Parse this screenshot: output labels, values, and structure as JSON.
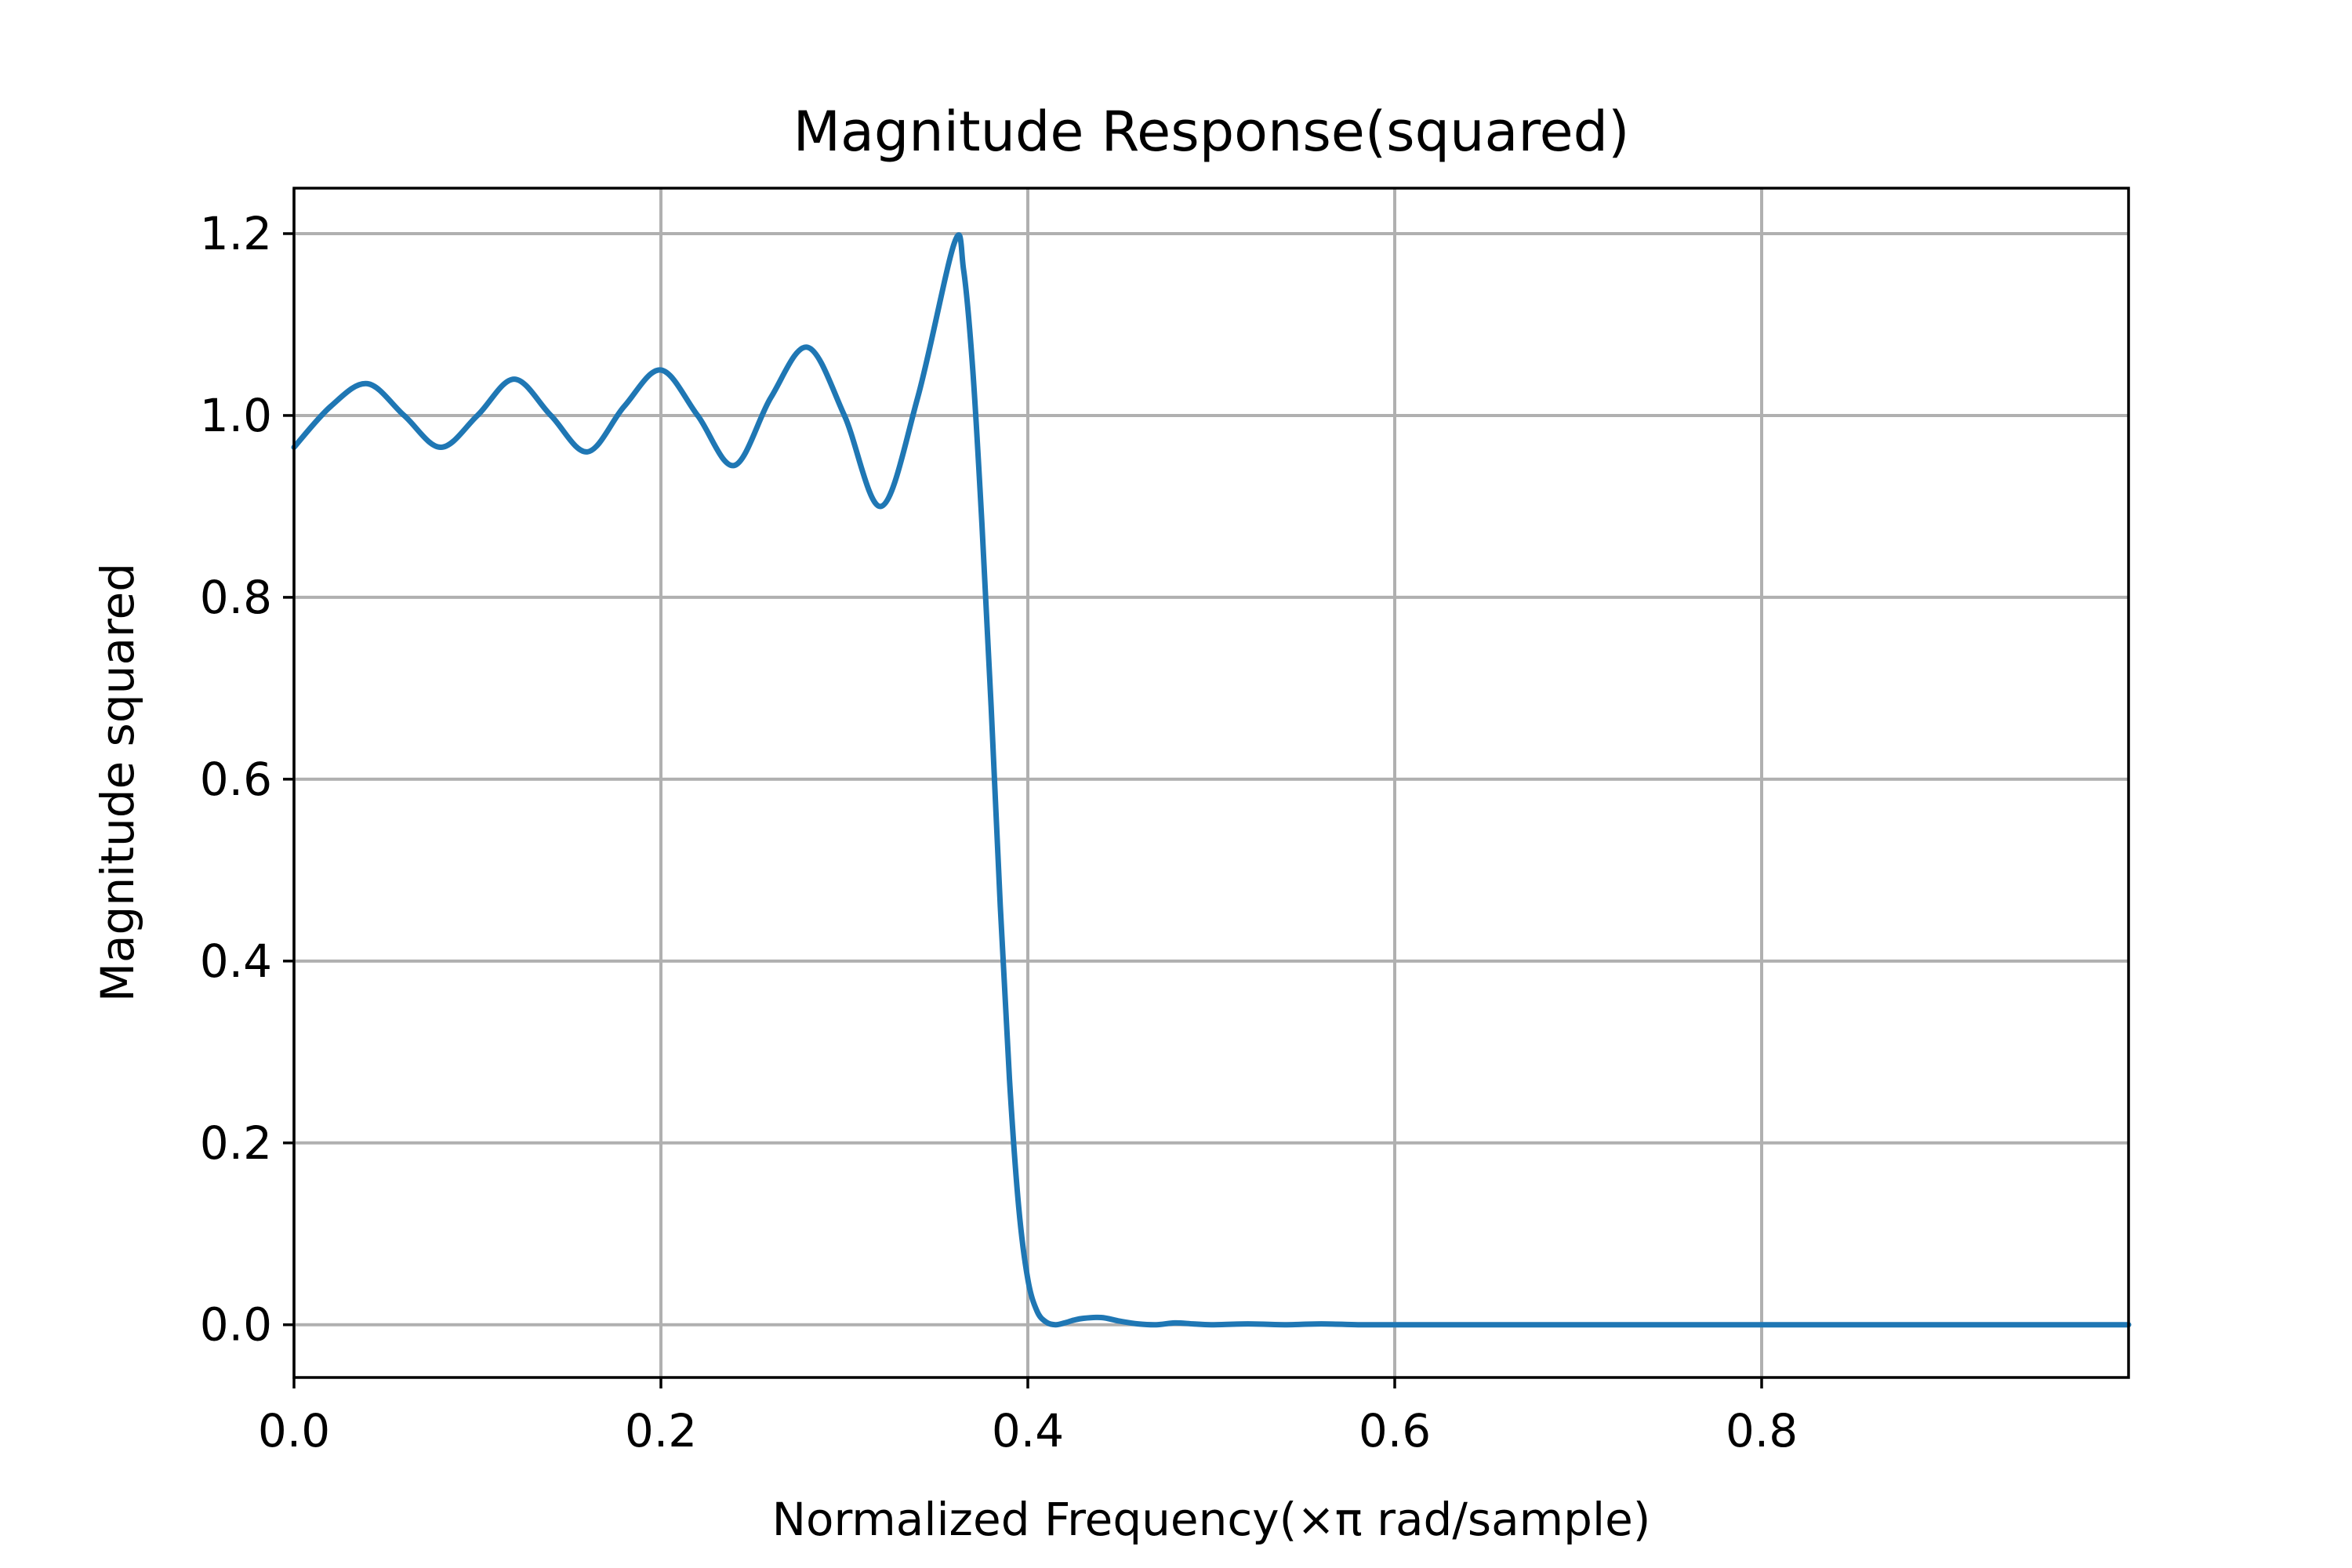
{
  "chart_data": {
    "type": "line",
    "title": "Magnitude Response(squared)",
    "xlabel": "Normalized Frequency(×π rad/sample)",
    "ylabel": "Magnitude squared",
    "xlim": [
      0.0,
      1.0
    ],
    "ylim": [
      -0.058,
      1.25
    ],
    "xticks": [
      0.0,
      0.2,
      0.4,
      0.6,
      0.8
    ],
    "xtick_labels": [
      "0.0",
      "0.2",
      "0.4",
      "0.6",
      "0.8"
    ],
    "yticks": [
      0.0,
      0.2,
      0.4,
      0.6,
      0.8,
      1.0,
      1.2
    ],
    "ytick_labels": [
      "0.0",
      "0.2",
      "0.4",
      "0.6",
      "0.8",
      "1.0",
      "1.2"
    ],
    "grid": true,
    "series": [
      {
        "color": "#1f77b4",
        "x": [
          0.0,
          0.02,
          0.04,
          0.06,
          0.08,
          0.1,
          0.12,
          0.14,
          0.16,
          0.18,
          0.2,
          0.22,
          0.24,
          0.26,
          0.28,
          0.3,
          0.32,
          0.34,
          0.36,
          0.365,
          0.37,
          0.375,
          0.38,
          0.385,
          0.39,
          0.395,
          0.4,
          0.405,
          0.41,
          0.415,
          0.42,
          0.425,
          0.43,
          0.44,
          0.45,
          0.46,
          0.47,
          0.48,
          0.49,
          0.5,
          0.52,
          0.54,
          0.56,
          0.58,
          0.6,
          0.7,
          0.8,
          0.9,
          1.0
        ],
        "y": [
          0.965,
          1.01,
          1.035,
          1.0,
          0.965,
          1.0,
          1.04,
          1.0,
          0.96,
          1.01,
          1.05,
          1.0,
          0.945,
          1.02,
          1.075,
          1.0,
          0.9,
          1.02,
          1.19,
          1.16,
          1.05,
          0.88,
          0.68,
          0.46,
          0.27,
          0.13,
          0.05,
          0.015,
          0.003,
          0.0,
          0.002,
          0.005,
          0.007,
          0.008,
          0.004,
          0.001,
          0.0,
          0.002,
          0.001,
          0.0,
          0.001,
          0.0,
          0.001,
          0.0,
          0.0,
          0.0,
          0.0,
          0.0,
          0.0
        ]
      }
    ]
  }
}
